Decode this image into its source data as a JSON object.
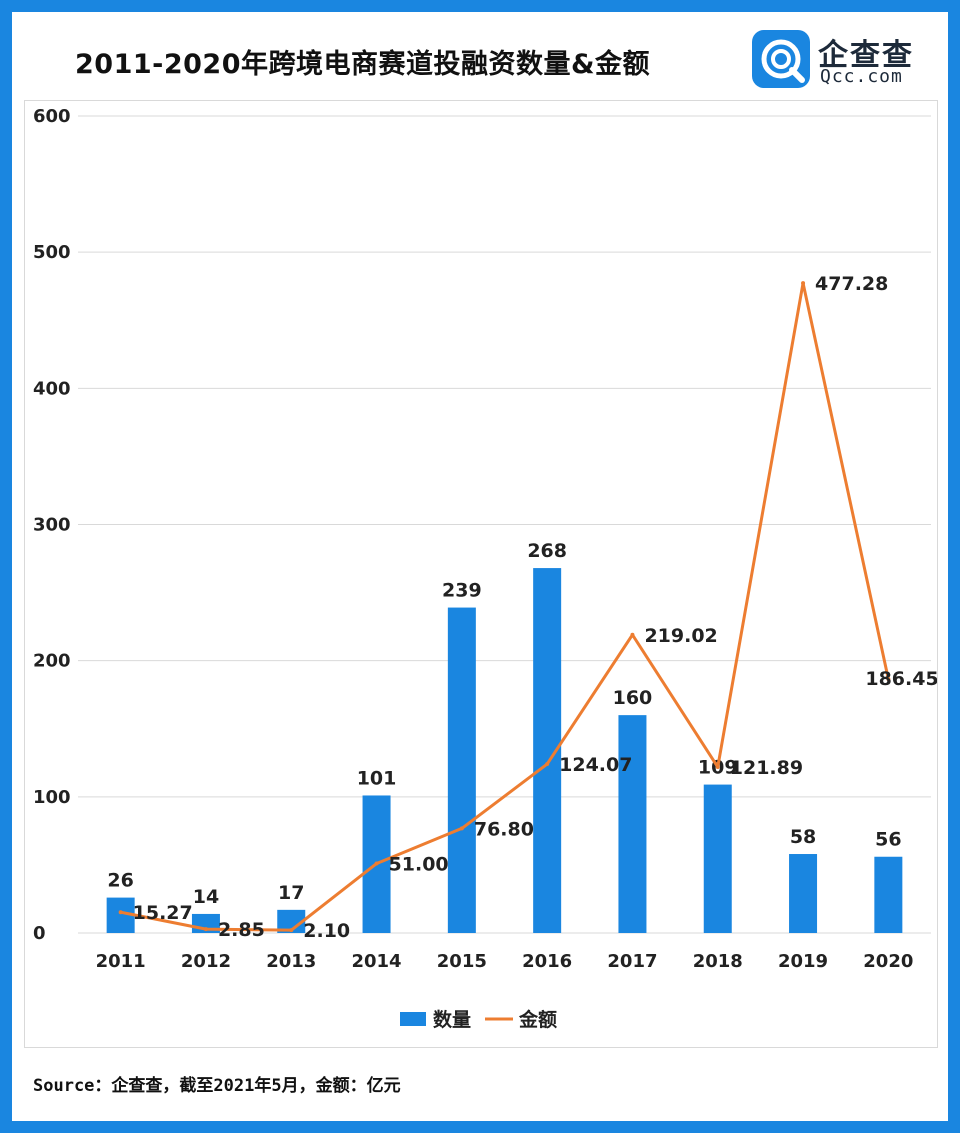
{
  "title": "2011-2020年跨境电商赛道投融资数量&金额",
  "logo": {
    "name": "企查查",
    "url": "Qcc.com"
  },
  "source": "Source：企查查，截至2021年5月，金额：亿元",
  "colors": {
    "frame": "#1a86e0",
    "bar": "#1a86e0",
    "line": "#ed7d31",
    "grid": "#d9d9d9"
  },
  "chart_data": {
    "type": "bar",
    "categories": [
      "2011",
      "2012",
      "2013",
      "2014",
      "2015",
      "2016",
      "2017",
      "2018",
      "2019",
      "2020"
    ],
    "series": [
      {
        "name": "数量",
        "type": "bar",
        "values": [
          26,
          14,
          17,
          101,
          239,
          268,
          160,
          109,
          58,
          56
        ],
        "labels": [
          "26",
          "14",
          "17",
          "101",
          "239",
          "268",
          "160",
          "109",
          "58",
          "56"
        ]
      },
      {
        "name": "金额",
        "type": "line",
        "values": [
          15.27,
          2.85,
          2.1,
          51.0,
          76.8,
          124.07,
          219.02,
          121.89,
          477.28,
          186.45
        ],
        "labels": [
          "15.27",
          "2.85",
          "2.10",
          "51.00",
          "76.80",
          "124.07",
          "219.02",
          "121.89",
          "477.28",
          "186.45"
        ]
      }
    ],
    "ylim": [
      0,
      600
    ],
    "yticks": [
      "0",
      "100",
      "200",
      "300",
      "400",
      "500",
      "600"
    ],
    "grid": true,
    "legend_position": "bottom"
  }
}
